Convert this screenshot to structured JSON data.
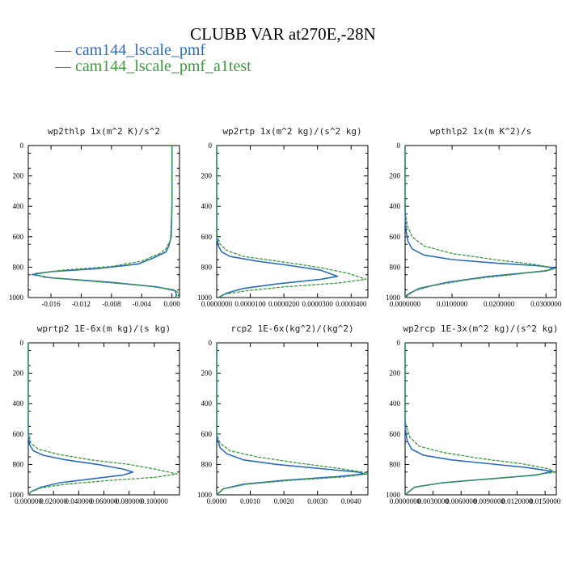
{
  "title": "CLUBB VAR at270E,-28N",
  "legend": [
    {
      "label": "cam144_lscale_pmf",
      "color": "#2a6ebd",
      "dash": "solid"
    },
    {
      "label": "cam144_lscale_pmf_a1test",
      "color": "#3a9a3a",
      "dash": "dashed"
    }
  ],
  "chart_data": [
    {
      "type": "line",
      "title": "wp2thlp  1x(m^2 K)/s^2",
      "xlim": [
        -0.019,
        0.001
      ],
      "ylim": [
        1000,
        0
      ],
      "xticks": [
        -0.016,
        -0.012,
        -0.008,
        -0.004,
        0.0
      ],
      "xtick_labels": [
        "-0.016",
        "-0.012",
        "-0.008",
        "-0.004",
        "0.000"
      ],
      "yticks": [
        0,
        200,
        400,
        600,
        800,
        1000
      ],
      "ytick_labels": [
        "0",
        "200",
        "400",
        "600",
        "800",
        "1000"
      ],
      "series": [
        {
          "name": "cam144_lscale_pmf",
          "points": [
            [
              0.0,
              0
            ],
            [
              0.0,
              400
            ],
            [
              -0.0001,
              600
            ],
            [
              -0.0004,
              660
            ],
            [
              -0.0008,
              700
            ],
            [
              -0.0025,
              740
            ],
            [
              -0.0045,
              780
            ],
            [
              -0.01,
              810
            ],
            [
              -0.016,
              830
            ],
            [
              -0.0185,
              848
            ],
            [
              -0.016,
              870
            ],
            [
              -0.008,
              900
            ],
            [
              -0.002,
              930
            ],
            [
              0.0004,
              955
            ],
            [
              0.0006,
              980
            ],
            [
              0.0005,
              1000
            ]
          ]
        },
        {
          "name": "cam144_lscale_pmf_a1test",
          "points": [
            [
              0.0,
              0
            ],
            [
              0.0,
              400
            ],
            [
              -0.0002,
              620
            ],
            [
              -0.0008,
              680
            ],
            [
              -0.0016,
              710
            ],
            [
              -0.004,
              760
            ],
            [
              -0.008,
              795
            ],
            [
              -0.0145,
              820
            ],
            [
              -0.0182,
              842
            ],
            [
              -0.017,
              866
            ],
            [
              -0.01,
              895
            ],
            [
              -0.004,
              920
            ],
            [
              0.0,
              945
            ],
            [
              0.0008,
              965
            ],
            [
              0.0009,
              985
            ],
            [
              0.0006,
              1000
            ]
          ]
        }
      ]
    },
    {
      "type": "line",
      "title": "wp2rtp  1x(m^2 kg)/(s^2 kg)",
      "xlim": [
        0.0,
        4.5e-05
      ],
      "ylim": [
        1000,
        0
      ],
      "xticks": [
        0.0,
        1e-05,
        2e-05,
        3e-05,
        4e-05
      ],
      "xtick_labels": [
        "0.0000000",
        "0.0000100",
        "0.0000200",
        "0.0000300",
        "0.0000400"
      ],
      "yticks": [
        0,
        200,
        400,
        600,
        800,
        1000
      ],
      "ytick_labels": [
        "0",
        "200",
        "400",
        "600",
        "800",
        "1000"
      ],
      "series": [
        {
          "name": "cam144_lscale_pmf",
          "points": [
            [
              0.0,
              0
            ],
            [
              0.0,
              600
            ],
            [
              5e-07,
              660
            ],
            [
              1.5e-06,
              700
            ],
            [
              4e-06,
              730
            ],
            [
              1.2e-05,
              760
            ],
            [
              2.2e-05,
              790
            ],
            [
              3.1e-05,
              820
            ],
            [
              3.6e-05,
              860
            ],
            [
              3.1e-05,
              880
            ],
            [
              1.8e-05,
              910
            ],
            [
              8e-06,
              940
            ],
            [
              3e-06,
              970
            ],
            [
              5e-07,
              1000
            ]
          ]
        },
        {
          "name": "cam144_lscale_pmf_a1test",
          "points": [
            [
              0.0,
              0
            ],
            [
              0.0,
              580
            ],
            [
              1e-06,
              650
            ],
            [
              3e-06,
              690
            ],
            [
              8e-06,
              730
            ],
            [
              1.8e-05,
              760
            ],
            [
              3e-05,
              800
            ],
            [
              3.9e-05,
              840
            ],
            [
              4.45e-05,
              880
            ],
            [
              3.6e-05,
              905
            ],
            [
              2e-05,
              930
            ],
            [
              9e-06,
              955
            ],
            [
              2e-06,
              980
            ],
            [
              5e-07,
              1000
            ]
          ]
        }
      ]
    },
    {
      "type": "line",
      "title": "wpthlp2  1x(m K^2)/s",
      "xlim": [
        0.0,
        0.0322
      ],
      "ylim": [
        1000,
        0
      ],
      "xticks": [
        0.0,
        0.01,
        0.02,
        0.03
      ],
      "xtick_labels": [
        "0.0000000",
        "0.0100000",
        "0.0200000",
        "0.0300000"
      ],
      "yticks": [
        0,
        200,
        400,
        600,
        800,
        1000
      ],
      "ytick_labels": [
        "0",
        "200",
        "400",
        "600",
        "800",
        "1000"
      ],
      "series": [
        {
          "name": "cam144_lscale_pmf",
          "points": [
            [
              0.0,
              0
            ],
            [
              0.0,
              450
            ],
            [
              0.0002,
              560
            ],
            [
              0.0006,
              630
            ],
            [
              0.0015,
              680
            ],
            [
              0.004,
              720
            ],
            [
              0.01,
              750
            ],
            [
              0.02,
              775
            ],
            [
              0.028,
              790
            ],
            [
              0.032,
              805
            ],
            [
              0.03,
              825
            ],
            [
              0.018,
              860
            ],
            [
              0.009,
              900
            ],
            [
              0.003,
              940
            ],
            [
              0.0005,
              980
            ],
            [
              0.0,
              1000
            ]
          ]
        },
        {
          "name": "cam144_lscale_pmf_a1test",
          "points": [
            [
              0.0,
              0
            ],
            [
              0.0,
              430
            ],
            [
              0.0005,
              530
            ],
            [
              0.0015,
              600
            ],
            [
              0.004,
              660
            ],
            [
              0.01,
              710
            ],
            [
              0.019,
              750
            ],
            [
              0.027,
              780
            ],
            [
              0.03,
              795
            ],
            [
              0.0315,
              815
            ],
            [
              0.024,
              845
            ],
            [
              0.014,
              880
            ],
            [
              0.006,
              920
            ],
            [
              0.002,
              955
            ],
            [
              0.0,
              1000
            ]
          ]
        }
      ]
    },
    {
      "type": "line",
      "title": "wprtp2  1E-6x(m kg)/(s kg)",
      "xlim": [
        0.0,
        0.12
      ],
      "ylim": [
        1000,
        0
      ],
      "xticks": [
        0.0,
        0.02,
        0.04,
        0.06,
        0.08,
        0.1
      ],
      "xtick_labels": [
        "0.000000",
        "0.020000",
        "0.040000",
        "0.060000",
        "0.080000",
        "0.100000"
      ],
      "yticks": [
        0,
        200,
        400,
        600,
        800,
        1000
      ],
      "ytick_labels": [
        "0",
        "200",
        "400",
        "600",
        "800",
        "1000"
      ],
      "series": [
        {
          "name": "cam144_lscale_pmf",
          "points": [
            [
              0.0,
              0
            ],
            [
              0.0,
              600
            ],
            [
              0.001,
              670
            ],
            [
              0.004,
              710
            ],
            [
              0.012,
              740
            ],
            [
              0.03,
              770
            ],
            [
              0.055,
              800
            ],
            [
              0.075,
              830
            ],
            [
              0.083,
              850
            ],
            [
              0.075,
              870
            ],
            [
              0.05,
              895
            ],
            [
              0.025,
              920
            ],
            [
              0.01,
              950
            ],
            [
              0.002,
              980
            ],
            [
              0.0,
              1000
            ]
          ]
        },
        {
          "name": "cam144_lscale_pmf_a1test",
          "points": [
            [
              0.0,
              0
            ],
            [
              0.0,
              580
            ],
            [
              0.002,
              660
            ],
            [
              0.008,
              700
            ],
            [
              0.025,
              735
            ],
            [
              0.05,
              770
            ],
            [
              0.08,
              800
            ],
            [
              0.1,
              830
            ],
            [
              0.118,
              862
            ],
            [
              0.1,
              885
            ],
            [
              0.065,
              905
            ],
            [
              0.03,
              930
            ],
            [
              0.01,
              955
            ],
            [
              0.002,
              980
            ],
            [
              0.0,
              1000
            ]
          ]
        }
      ]
    },
    {
      "type": "line",
      "title": "rcp2  1E-6x(kg^2)/(kg^2)",
      "xlim": [
        0.0,
        0.0045
      ],
      "ylim": [
        1000,
        0
      ],
      "xticks": [
        0.0,
        0.001,
        0.002,
        0.003,
        0.004
      ],
      "xtick_labels": [
        "0.0000",
        "0.0010",
        "0.0020",
        "0.0030",
        "0.0040"
      ],
      "yticks": [
        0,
        200,
        400,
        600,
        800,
        1000
      ],
      "ytick_labels": [
        "0",
        "200",
        "400",
        "600",
        "800",
        "1000"
      ],
      "series": [
        {
          "name": "cam144_lscale_pmf",
          "points": [
            [
              0.0,
              0
            ],
            [
              0.0,
              620
            ],
            [
              0.0001,
              690
            ],
            [
              0.0003,
              730
            ],
            [
              0.0008,
              770
            ],
            [
              0.0018,
              800
            ],
            [
              0.0032,
              830
            ],
            [
              0.0042,
              850
            ],
            [
              0.0044,
              862
            ],
            [
              0.0036,
              880
            ],
            [
              0.002,
              905
            ],
            [
              0.0008,
              930
            ],
            [
              0.0002,
              960
            ],
            [
              0.0,
              1000
            ]
          ]
        },
        {
          "name": "cam144_lscale_pmf_a1test",
          "points": [
            [
              0.0,
              0
            ],
            [
              0.0,
              600
            ],
            [
              0.0001,
              660
            ],
            [
              0.0004,
              710
            ],
            [
              0.0012,
              750
            ],
            [
              0.0024,
              790
            ],
            [
              0.0036,
              825
            ],
            [
              0.0044,
              852
            ],
            [
              0.0045,
              862
            ],
            [
              0.0038,
              882
            ],
            [
              0.0022,
              905
            ],
            [
              0.0009,
              930
            ],
            [
              0.0002,
              960
            ],
            [
              0.0,
              1000
            ]
          ]
        }
      ]
    },
    {
      "type": "line",
      "title": "wp2rcp  1E-3x(m^2 kg)/(s^2 kg)",
      "xlim": [
        0.0,
        0.0162
      ],
      "ylim": [
        1000,
        0
      ],
      "xticks": [
        0.0,
        0.003,
        0.006,
        0.009,
        0.012,
        0.015
      ],
      "xtick_labels": [
        "0.0000000",
        "0.0030000",
        "0.0060000",
        "0.0090000",
        "0.0120000",
        "0.0150000"
      ],
      "yticks": [
        0,
        200,
        400,
        600,
        800,
        1000
      ],
      "ytick_labels": [
        "0",
        "200",
        "400",
        "600",
        "800",
        "1000"
      ],
      "series": [
        {
          "name": "cam144_lscale_pmf",
          "points": [
            [
              0.0,
              0
            ],
            [
              0.0,
              550
            ],
            [
              0.0002,
              640
            ],
            [
              0.0007,
              700
            ],
            [
              0.002,
              740
            ],
            [
              0.005,
              770
            ],
            [
              0.009,
              795
            ],
            [
              0.013,
              820
            ],
            [
              0.0158,
              845
            ],
            [
              0.014,
              870
            ],
            [
              0.009,
              895
            ],
            [
              0.004,
              920
            ],
            [
              0.001,
              950
            ],
            [
              0.0,
              1000
            ]
          ]
        },
        {
          "name": "cam144_lscale_pmf_a1test",
          "points": [
            [
              0.0,
              0
            ],
            [
              0.0,
              520
            ],
            [
              0.0005,
              620
            ],
            [
              0.0015,
              680
            ],
            [
              0.004,
              720
            ],
            [
              0.008,
              760
            ],
            [
              0.0125,
              795
            ],
            [
              0.0155,
              830
            ],
            [
              0.016,
              852
            ],
            [
              0.013,
              875
            ],
            [
              0.008,
              900
            ],
            [
              0.0035,
              925
            ],
            [
              0.001,
              950
            ],
            [
              0.0,
              1000
            ]
          ]
        }
      ]
    }
  ]
}
